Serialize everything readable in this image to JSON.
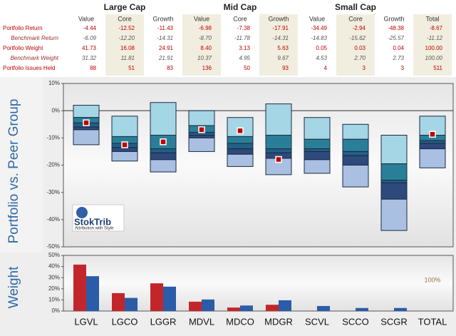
{
  "table": {
    "groups": [
      "Large Cap",
      "Mid Cap",
      "Small Cap"
    ],
    "columns": [
      "Value",
      "Core",
      "Growth",
      "Value",
      "Core",
      "Growth",
      "Value",
      "Core",
      "Growth",
      "Total"
    ],
    "rows": [
      {
        "label": "Portfolio Return",
        "cells": [
          "-4.44",
          "-12.52",
          "-11.43",
          "-6.98",
          "-7.38",
          "-17.91",
          "-34.49",
          "-2.94",
          "-48.38",
          "-8.67"
        ]
      },
      {
        "label": "Benchmark Return",
        "cells": [
          "-6.09",
          "-12.20",
          "-14.31",
          "-8.70",
          "-11.78",
          "-14.31",
          "-14.83",
          "-15.62",
          "-25.57",
          "-11.12"
        ]
      },
      {
        "label": "Portfolio Weight",
        "cells": [
          "41.73",
          "16.08",
          "24.91",
          "8.40",
          "3.13",
          "5.63",
          "0.05",
          "0.03",
          "0.04",
          "100.00"
        ]
      },
      {
        "label": "Benchmark Weight",
        "cells": [
          "31.32",
          "11.81",
          "21.91",
          "10.37",
          "4.95",
          "9.67",
          "4.53",
          "2.70",
          "2.73",
          "100.00"
        ]
      },
      {
        "label": "Portfolio Issues Held",
        "cells": [
          "88",
          "51",
          "83",
          "136",
          "50",
          "93",
          "4",
          "3",
          "3",
          "511"
        ]
      }
    ]
  },
  "logo": {
    "name": "StokTrib",
    "tagline": "Attribution with Style"
  },
  "chart_data": [
    {
      "type": "floating-box",
      "y_label": "Portfolio vs. Peer Group",
      "ylim": [
        -50,
        10
      ],
      "yticks": [
        {
          "value": 10,
          "label": "10%"
        },
        {
          "value": 0,
          "label": "0%"
        },
        {
          "value": -10,
          "label": "-10%"
        },
        {
          "value": -20,
          "label": "-20%"
        },
        {
          "value": -30,
          "label": "-30%"
        },
        {
          "value": -40,
          "label": "-40%"
        },
        {
          "value": -50,
          "label": "-50%"
        }
      ],
      "band_colors": [
        "#a5d6e6",
        "#2a7f98",
        "#235f86",
        "#2e4a7c",
        "#a9c0e2"
      ],
      "bounds": [
        [
          2,
          -2,
          3,
          0,
          -2.5,
          2.5,
          -2.5,
          -5,
          -9,
          -2
        ],
        [
          -2.5,
          -9.5,
          -9,
          -5.5,
          -9.5,
          -9,
          -10.5,
          -10.5,
          -19.5,
          -9
        ],
        [
          -4.5,
          -12,
          -14,
          -8,
          -12,
          -14,
          -14,
          -15,
          -25.5,
          -11
        ],
        [
          -6,
          -13.5,
          -15.5,
          -9,
          -14,
          -15.5,
          -15,
          -16.5,
          -26.5,
          -12
        ],
        [
          -7,
          -15,
          -18,
          -10,
          -16,
          -17.5,
          -18,
          -20,
          -32.5,
          -14
        ],
        [
          -12.5,
          -18.5,
          -22.5,
          -15,
          -20.5,
          -23.5,
          -23,
          -28,
          -44,
          -21
        ]
      ],
      "values": [
        -4.44,
        -12.52,
        -11.43,
        -6.98,
        -7.38,
        -17.91,
        null,
        null,
        null,
        -8.67
      ],
      "marker_color": "#c00000"
    },
    {
      "type": "bar",
      "y_label": "Weight",
      "categories": [
        "LGVL",
        "LGCO",
        "LGGR",
        "MDVL",
        "MDCO",
        "MDGR",
        "SCVL",
        "SCCO",
        "SCGR",
        "TOTAL"
      ],
      "ylim": [
        0,
        50
      ],
      "yticks": [
        {
          "value": 0,
          "label": "0%"
        },
        {
          "value": 10,
          "label": "10%"
        },
        {
          "value": 20,
          "label": "20%"
        },
        {
          "value": 30,
          "label": "30%"
        },
        {
          "value": 40,
          "label": "40%"
        },
        {
          "value": 50,
          "label": "50%"
        }
      ],
      "series": [
        {
          "color": "#c3262a",
          "values": [
            41.73,
            16.08,
            24.91,
            8.4,
            3.13,
            5.63,
            0.05,
            0.03,
            0.04,
            null
          ]
        },
        {
          "color": "#2b5ca8",
          "values": [
            31.32,
            11.81,
            21.91,
            10.37,
            4.95,
            9.67,
            4.53,
            2.7,
            2.73,
            null
          ]
        }
      ],
      "total_label": "100%"
    }
  ]
}
